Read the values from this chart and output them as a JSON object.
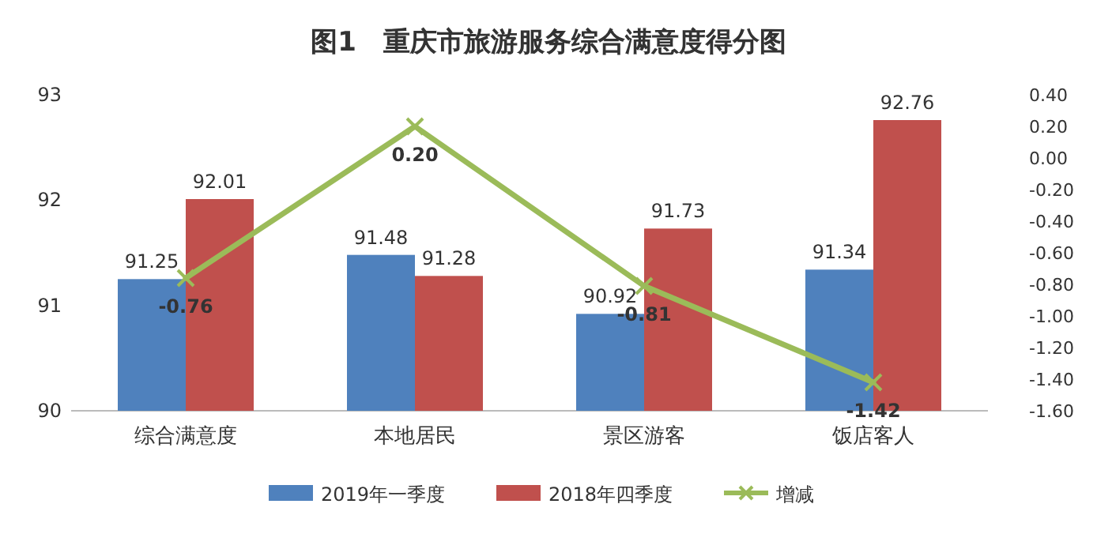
{
  "chart_data": {
    "type": "bar",
    "title": "图1　重庆市旅游服务综合满意度得分图",
    "categories": [
      "综合满意度",
      "本地居民",
      "景区游客",
      "饭店客人"
    ],
    "series": [
      {
        "name": "2019年一季度",
        "color": "#4f81bd",
        "values": [
          91.25,
          91.48,
          90.92,
          91.34
        ],
        "value_labels": [
          "91.25",
          "91.48",
          "90.92",
          "91.34"
        ]
      },
      {
        "name": "2018年四季度",
        "color": "#c0504d",
        "values": [
          92.01,
          91.28,
          91.73,
          92.76
        ],
        "value_labels": [
          "92.01",
          "91.28",
          "91.73",
          "92.76"
        ]
      },
      {
        "name": "增减",
        "type": "line",
        "axis": "y2",
        "color": "#9bbb59",
        "marker": "cross",
        "values": [
          -0.76,
          0.2,
          -0.81,
          -1.42
        ],
        "value_labels": [
          "-0.76",
          "0.20",
          "-0.81",
          "-1.42"
        ]
      }
    ],
    "ylim": [
      90,
      93
    ],
    "yticks": [
      90,
      91,
      92,
      93
    ],
    "y2lim": [
      -1.6,
      0.4
    ],
    "y2ticks": [
      {
        "value": -1.6,
        "label": "-1.60"
      },
      {
        "value": -1.4,
        "label": "-1.40"
      },
      {
        "value": -1.2,
        "label": "-1.20"
      },
      {
        "value": -1.0,
        "label": "-1.00"
      },
      {
        "value": -0.8,
        "label": "-0.80"
      },
      {
        "value": -0.6,
        "label": "-0.60"
      },
      {
        "value": -0.4,
        "label": "-0.40"
      },
      {
        "value": -0.2,
        "label": "-0.20"
      },
      {
        "value": 0,
        "label": "0.00"
      },
      {
        "value": 0.2,
        "label": "0.20"
      },
      {
        "value": 0.4,
        "label": "0.40"
      }
    ],
    "legend": "bottom"
  }
}
